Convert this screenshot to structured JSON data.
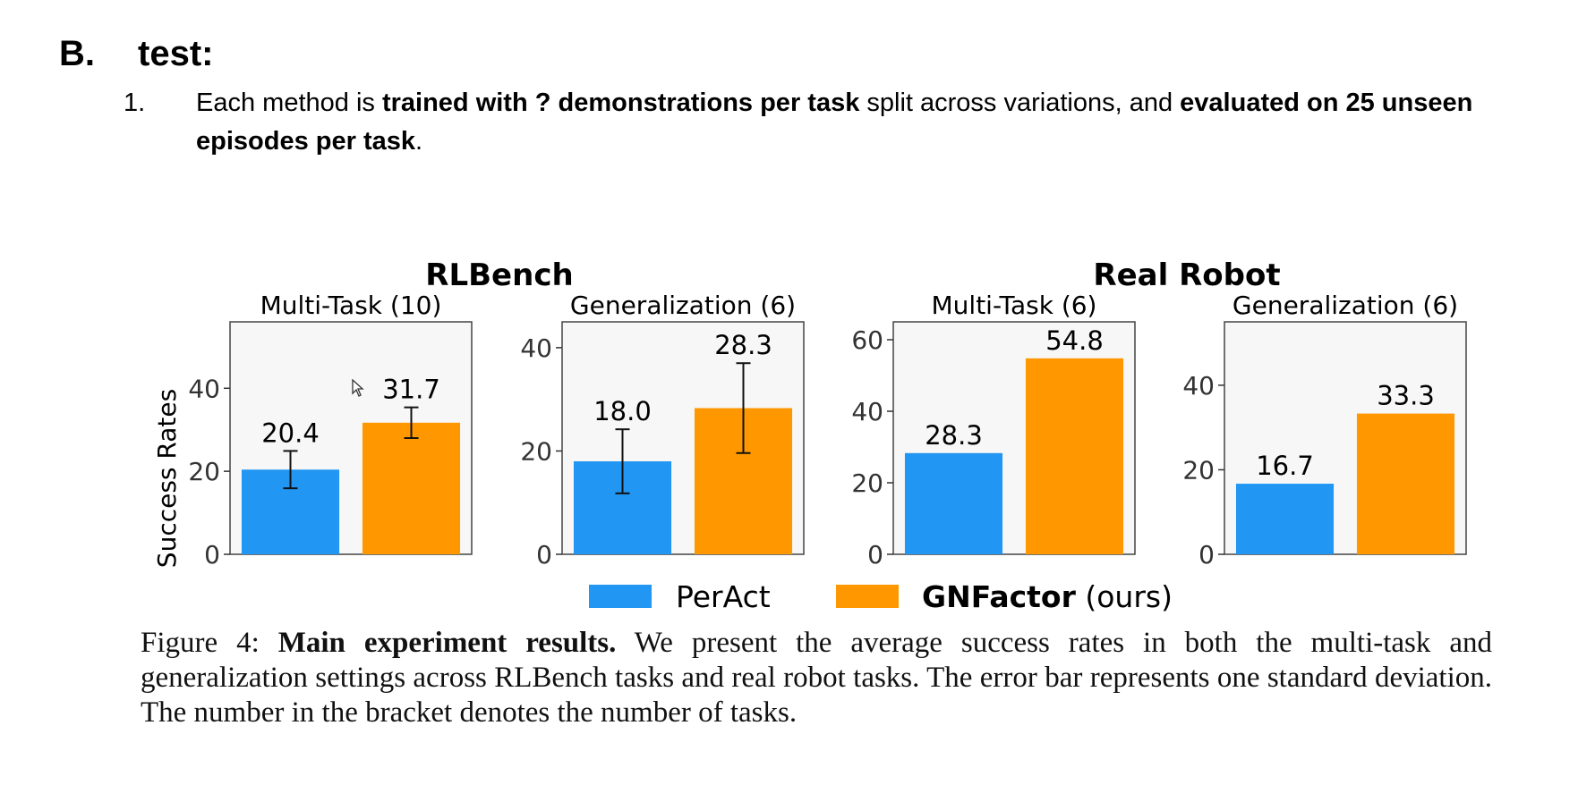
{
  "heading": {
    "label": "B.",
    "text": "test:"
  },
  "list_item": {
    "number": "1.",
    "segments": [
      {
        "text": "Each method is ",
        "bold": false
      },
      {
        "text": "trained with ? demonstrations per task",
        "bold": true
      },
      {
        "text": " split across variations, and ",
        "bold": false
      },
      {
        "text": "evaluated on 25 unseen episodes per task",
        "bold": true
      },
      {
        "text": ".",
        "bold": false
      }
    ]
  },
  "figure": {
    "group_titles": [
      "RLBench",
      "Real Robot"
    ],
    "ylabel": "Success Rates",
    "legend": [
      {
        "name": "PerAct",
        "bold_part": "",
        "rest": "PerAct",
        "color": "#2196F3"
      },
      {
        "name": "GNFactor (ours)",
        "bold_part": "GNFactor",
        "rest": " (ours)",
        "color": "#FF9800"
      }
    ],
    "caption": {
      "label": "Figure 4:",
      "bold": "Main experiment results.",
      "text": "We present the average success rates in both the multi-task and generalization settings across RLBench tasks and real robot tasks. The error bar represents one standard deviation. The number in the bracket denotes the number of tasks."
    }
  },
  "chart_data": [
    {
      "type": "bar",
      "group": "RLBench",
      "title": "Multi-Task (10)",
      "categories": [
        "PerAct",
        "GNFactor (ours)"
      ],
      "values": [
        20.4,
        31.7
      ],
      "error": [
        4.5,
        3.7
      ],
      "value_labels": [
        "20.4",
        "31.7"
      ],
      "ylim": [
        0,
        56
      ],
      "yticks": [
        0,
        20,
        40
      ],
      "ylabel": "Success Rates"
    },
    {
      "type": "bar",
      "group": "RLBench",
      "title": "Generalization (6)",
      "categories": [
        "PerAct",
        "GNFactor (ours)"
      ],
      "values": [
        18.0,
        28.3
      ],
      "error": [
        6.2,
        8.7
      ],
      "value_labels": [
        "18.0",
        "28.3"
      ],
      "ylim": [
        0,
        45
      ],
      "yticks": [
        0,
        20,
        40
      ]
    },
    {
      "type": "bar",
      "group": "Real Robot",
      "title": "Multi-Task (6)",
      "categories": [
        "PerAct",
        "GNFactor (ours)"
      ],
      "values": [
        28.3,
        54.8
      ],
      "value_labels": [
        "28.3",
        "54.8"
      ],
      "ylim": [
        0,
        65
      ],
      "yticks": [
        0,
        20,
        40,
        60
      ]
    },
    {
      "type": "bar",
      "group": "Real Robot",
      "title": "Generalization (6)",
      "categories": [
        "PerAct",
        "GNFactor (ours)"
      ],
      "values": [
        16.7,
        33.3
      ],
      "value_labels": [
        "16.7",
        "33.3"
      ],
      "ylim": [
        0,
        55
      ],
      "yticks": [
        0,
        20,
        40
      ]
    }
  ]
}
